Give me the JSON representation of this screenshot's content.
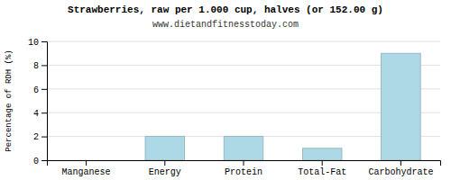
{
  "chart_data": {
    "type": "bar",
    "title": "Strawberries, raw per 1.000 cup, halves (or 152.00 g)",
    "subtitle": "www.dietandfitnesstoday.com",
    "ylabel": "Percentage of RDH (%)",
    "categories": [
      "Manganese",
      "Energy",
      "Protein",
      "Total-Fat",
      "Carbohydrate"
    ],
    "values": [
      0.0,
      2.0,
      2.0,
      1.0,
      9.0
    ],
    "color": "#add8e6",
    "ylim": [
      0,
      10
    ],
    "yticks": [
      0,
      2,
      4,
      6,
      8,
      10
    ],
    "grid": true
  }
}
